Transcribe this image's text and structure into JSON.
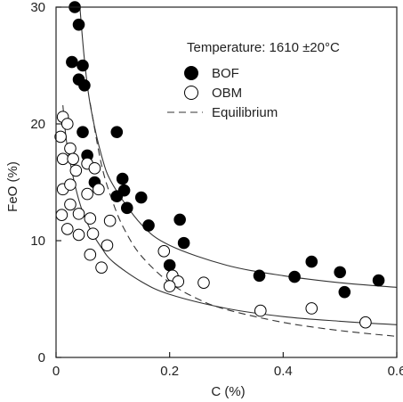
{
  "chart_data": {
    "type": "scatter",
    "xlabel": "C (%)",
    "ylabel": "FeO (%)",
    "xlim": [
      0,
      0.6
    ],
    "ylim": [
      0,
      30
    ],
    "x_ticks": [
      "0",
      "0.2",
      "0.4",
      "0.6"
    ],
    "y_ticks": [
      "0",
      "10",
      "20",
      "30"
    ],
    "x_tick_values": [
      0,
      0.2,
      0.4,
      0.6
    ],
    "y_tick_values": [
      0,
      10,
      20,
      30
    ],
    "grid": false,
    "legend_position": "top-right",
    "annotation": "Temperature: 1610 ±20°C",
    "series": [
      {
        "name": "BOF",
        "marker": "filled-circle",
        "color": "#000000",
        "points": [
          [
            0.033,
            30.0
          ],
          [
            0.04,
            28.5
          ],
          [
            0.028,
            25.3
          ],
          [
            0.047,
            25.0
          ],
          [
            0.04,
            23.8
          ],
          [
            0.05,
            23.3
          ],
          [
            0.047,
            19.3
          ],
          [
            0.107,
            19.3
          ],
          [
            0.055,
            17.3
          ],
          [
            0.068,
            15.0
          ],
          [
            0.117,
            15.3
          ],
          [
            0.12,
            14.3
          ],
          [
            0.107,
            13.8
          ],
          [
            0.15,
            13.7
          ],
          [
            0.125,
            12.8
          ],
          [
            0.163,
            11.3
          ],
          [
            0.218,
            11.8
          ],
          [
            0.225,
            9.8
          ],
          [
            0.2,
            7.9
          ],
          [
            0.358,
            7.0
          ],
          [
            0.42,
            6.9
          ],
          [
            0.45,
            8.2
          ],
          [
            0.5,
            7.3
          ],
          [
            0.508,
            5.6
          ],
          [
            0.568,
            6.6
          ]
        ]
      },
      {
        "name": "OBM",
        "marker": "open-circle",
        "color": "#000000",
        "points": [
          [
            0.012,
            20.6
          ],
          [
            0.02,
            20.0
          ],
          [
            0.008,
            18.9
          ],
          [
            0.025,
            17.9
          ],
          [
            0.012,
            17.0
          ],
          [
            0.03,
            17.0
          ],
          [
            0.035,
            16.0
          ],
          [
            0.055,
            16.6
          ],
          [
            0.068,
            16.2
          ],
          [
            0.012,
            14.4
          ],
          [
            0.025,
            14.8
          ],
          [
            0.055,
            14.0
          ],
          [
            0.075,
            14.4
          ],
          [
            0.025,
            13.1
          ],
          [
            0.04,
            12.3
          ],
          [
            0.01,
            12.2
          ],
          [
            0.06,
            11.9
          ],
          [
            0.02,
            11.0
          ],
          [
            0.065,
            10.6
          ],
          [
            0.04,
            10.5
          ],
          [
            0.095,
            11.7
          ],
          [
            0.09,
            9.6
          ],
          [
            0.06,
            8.8
          ],
          [
            0.08,
            7.7
          ],
          [
            0.19,
            9.1
          ],
          [
            0.205,
            7.0
          ],
          [
            0.215,
            6.5
          ],
          [
            0.2,
            6.1
          ],
          [
            0.26,
            6.4
          ],
          [
            0.36,
            4.0
          ],
          [
            0.45,
            4.2
          ],
          [
            0.545,
            3.0
          ]
        ]
      }
    ],
    "curves": [
      {
        "label": "BOF fit",
        "style": "solid",
        "points": [
          [
            0.042,
            30
          ],
          [
            0.05,
            25.5
          ],
          [
            0.06,
            21.7
          ],
          [
            0.08,
            17.3
          ],
          [
            0.1,
            14.8
          ],
          [
            0.15,
            11.4
          ],
          [
            0.2,
            9.6
          ],
          [
            0.3,
            7.9
          ],
          [
            0.4,
            7.0
          ],
          [
            0.5,
            6.4
          ],
          [
            0.6,
            6.0
          ]
        ]
      },
      {
        "label": "OBM fit",
        "style": "solid",
        "points": [
          [
            0.012,
            21.6
          ],
          [
            0.02,
            18.0
          ],
          [
            0.04,
            13.5
          ],
          [
            0.06,
            11.0
          ],
          [
            0.08,
            9.4
          ],
          [
            0.1,
            8.2
          ],
          [
            0.15,
            6.5
          ],
          [
            0.2,
            5.4
          ],
          [
            0.3,
            4.2
          ],
          [
            0.4,
            3.5
          ],
          [
            0.5,
            3.1
          ],
          [
            0.6,
            2.8
          ]
        ]
      },
      {
        "label": "Equilibrium",
        "style": "dashed",
        "points": [
          [
            0.06,
            21.8
          ],
          [
            0.08,
            16.5
          ],
          [
            0.1,
            13.3
          ],
          [
            0.12,
            11.0
          ],
          [
            0.15,
            8.7
          ],
          [
            0.2,
            6.4
          ],
          [
            0.25,
            5.0
          ],
          [
            0.3,
            4.1
          ],
          [
            0.4,
            3.0
          ],
          [
            0.5,
            2.3
          ],
          [
            0.6,
            1.8
          ]
        ]
      }
    ],
    "legend": [
      {
        "marker": "filled-circle",
        "label": "BOF"
      },
      {
        "marker": "open-circle",
        "label": "OBM"
      },
      {
        "marker": "dashed-line",
        "label": "Equilibrium"
      }
    ]
  }
}
